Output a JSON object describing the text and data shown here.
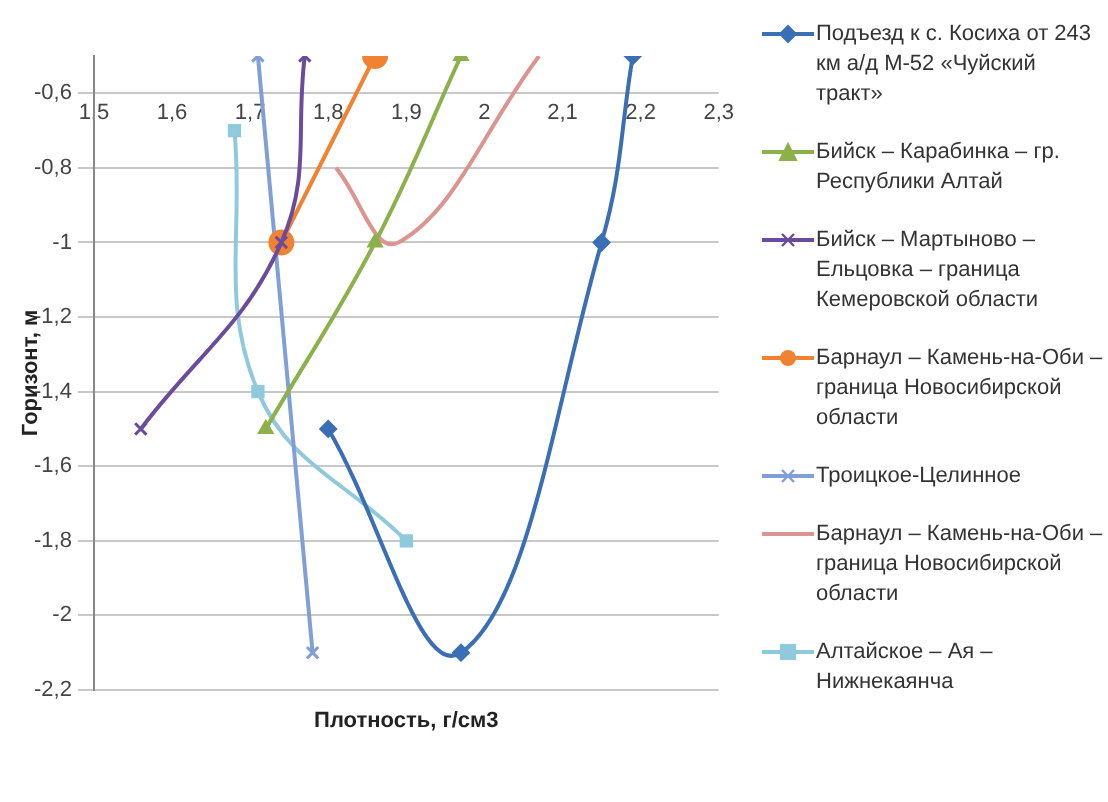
{
  "chart_data": {
    "type": "line",
    "xlabel": "Плотность, г/см3",
    "ylabel": "Горизонт, м",
    "xlim": [
      1.5,
      2.3
    ],
    "xticks": [
      {
        "value": 1.5,
        "label": "1,5"
      },
      {
        "value": 1.6,
        "label": "1,6"
      },
      {
        "value": 1.7,
        "label": "1,7"
      },
      {
        "value": 1.8,
        "label": "1,8"
      },
      {
        "value": 1.9,
        "label": "1,9"
      },
      2,
      {
        "value": 2.1,
        "label": "2,1"
      },
      {
        "value": 2.2,
        "label": "2,2"
      },
      {
        "value": 2.3,
        "label": "2,3"
      }
    ],
    "ylim": [
      -2.2,
      -0.5
    ],
    "yticks": [
      {
        "value": -0.6,
        "label": "-0,6"
      },
      {
        "value": -0.8,
        "label": "-0,8"
      },
      -1,
      {
        "value": -1.2,
        "label": "-1,2"
      },
      {
        "value": -1.4,
        "label": "-1,4"
      },
      {
        "value": -1.6,
        "label": "-1,6"
      },
      {
        "value": -1.8,
        "label": "-1,8"
      },
      -2,
      {
        "value": -2.2,
        "label": "-2,2"
      }
    ],
    "grid": "y",
    "legend": "right",
    "series": [
      {
        "name": "Подъезд к с. Косиха от 243 км а/д М-52 «Чуйский тракт»",
        "color": "#3a6fb5",
        "marker": "diamond",
        "x": [
          2.19,
          2.15,
          1.97,
          1.8
        ],
        "values": [
          -0.5,
          -1.0,
          -2.1,
          -1.5
        ]
      },
      {
        "name": "Бийск – Карабинка – гр. Республики Алтай",
        "color": "#8cb04a",
        "marker": "triangle",
        "x": [
          1.97,
          1.86,
          1.72
        ],
        "values": [
          -0.5,
          -1.0,
          -1.5
        ]
      },
      {
        "name": "Бийск – Мартыново – Ельцовка – граница Кемеровской области",
        "color": "#6b4c9a",
        "marker": "cross",
        "x": [
          1.77,
          1.74,
          1.56
        ],
        "values": [
          -0.5,
          -1.0,
          -1.5
        ]
      },
      {
        "name": "Барнаул – Камень-на-Оби – граница Новосибирской области",
        "color": "#f08232",
        "marker": "circle",
        "x": [
          1.86,
          1.74
        ],
        "values": [
          -0.5,
          -1.0
        ]
      },
      {
        "name": "Троицкое-Целинное",
        "color": "#7f9fd6",
        "marker": "cross",
        "x": [
          1.71,
          1.78
        ],
        "values": [
          -0.5,
          -2.1
        ]
      },
      {
        "name": "Барнаул – Камень-на-Оби – граница Новосибирской области",
        "color": "#dc9490",
        "marker": "none",
        "x": [
          1.81,
          1.89,
          2.07
        ],
        "values": [
          -0.8,
          -1.0,
          -0.5
        ]
      },
      {
        "name": "Алтайское – Ая – Нижнекаянча",
        "color": "#8fc9dc",
        "marker": "square",
        "x": [
          1.68,
          1.71,
          1.9
        ],
        "values": [
          -0.7,
          -1.4,
          -1.8
        ]
      }
    ]
  }
}
